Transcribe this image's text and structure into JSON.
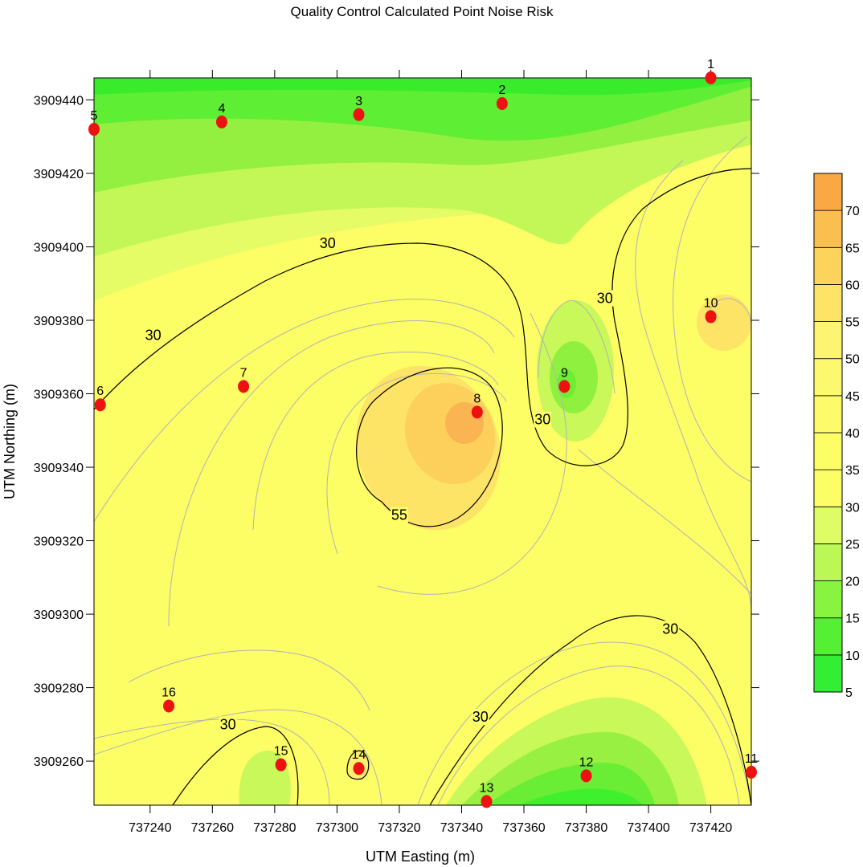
{
  "chart_data": {
    "type": "contour",
    "title": "Quality Control Calculated Point Noise Risk",
    "xlabel": "UTM Easting (m)",
    "ylabel": "UTM Northing (m)",
    "xlim": [
      737222,
      737433
    ],
    "ylim": [
      3909248,
      3909446
    ],
    "x_ticks": [
      737240,
      737260,
      737280,
      737300,
      737320,
      737340,
      737360,
      737380,
      737400,
      737420
    ],
    "y_ticks": [
      3909260,
      3909280,
      3909300,
      3909320,
      3909340,
      3909360,
      3909380,
      3909400,
      3909420,
      3909440
    ],
    "x_tick_labels": [
      "737240",
      "737260",
      "737280",
      "737300",
      "737320",
      "737340",
      "737360",
      "737380",
      "737400",
      "737420"
    ],
    "y_tick_labels": [
      "3909260",
      "3909280",
      "3909300",
      "3909320",
      "3909340",
      "3909360",
      "3909380",
      "3909400",
      "3909420",
      "3909440"
    ],
    "colorbar": {
      "levels": [
        5,
        10,
        15,
        20,
        25,
        30,
        35,
        40,
        45,
        50,
        55,
        60,
        65,
        70,
        75
      ],
      "labels": [
        "5",
        "10",
        "15",
        "20",
        "25",
        "30",
        "35",
        "40",
        "45",
        "50",
        "55",
        "60",
        "65",
        "70"
      ],
      "colors": [
        "#33ee33",
        "#55f033",
        "#88f440",
        "#bbf855",
        "#ddfc66",
        "#fdfd66",
        "#fdfd66",
        "#fdfb6a",
        "#fdf96e",
        "#fdf472",
        "#fde466",
        "#fcd45c",
        "#fbbf4f",
        "#faa843",
        "#f99a3e"
      ]
    },
    "contour_labels": [
      {
        "text": "30",
        "x": 737297,
        "y": 3909401
      },
      {
        "text": "30",
        "x": 737241,
        "y": 3909376
      },
      {
        "text": "30",
        "x": 737386,
        "y": 3909386
      },
      {
        "text": "30",
        "x": 737366,
        "y": 3909353
      },
      {
        "text": "55",
        "x": 737320,
        "y": 3909327
      },
      {
        "text": "30",
        "x": 737407,
        "y": 3909296
      },
      {
        "text": "30",
        "x": 737346,
        "y": 3909272
      },
      {
        "text": "30",
        "x": 737265,
        "y": 3909270
      }
    ],
    "points": [
      {
        "id": "1",
        "x": 737420,
        "y": 3909446
      },
      {
        "id": "2",
        "x": 737353,
        "y": 3909439
      },
      {
        "id": "3",
        "x": 737307,
        "y": 3909436
      },
      {
        "id": "4",
        "x": 737263,
        "y": 3909434
      },
      {
        "id": "5",
        "x": 737222,
        "y": 3909432
      },
      {
        "id": "6",
        "x": 737224,
        "y": 3909357
      },
      {
        "id": "7",
        "x": 737270,
        "y": 3909362
      },
      {
        "id": "8",
        "x": 737345,
        "y": 3909355
      },
      {
        "id": "9",
        "x": 737373,
        "y": 3909362
      },
      {
        "id": "10",
        "x": 737420,
        "y": 3909381
      },
      {
        "id": "11",
        "x": 737433,
        "y": 3909257
      },
      {
        "id": "12",
        "x": 737380,
        "y": 3909256
      },
      {
        "id": "13",
        "x": 737348,
        "y": 3909249
      },
      {
        "id": "14",
        "x": 737307,
        "y": 3909258
      },
      {
        "id": "15",
        "x": 737282,
        "y": 3909259
      },
      {
        "id": "16",
        "x": 737246,
        "y": 3909275
      }
    ]
  }
}
